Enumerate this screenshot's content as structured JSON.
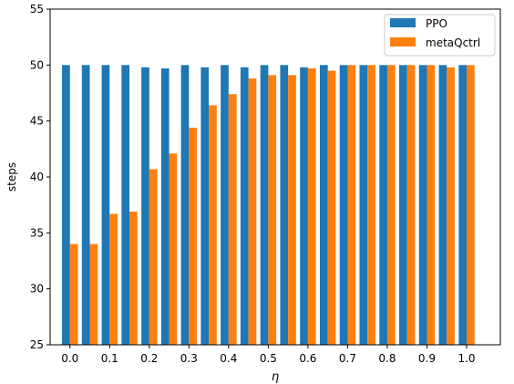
{
  "chart_data": {
    "type": "bar",
    "title": "",
    "xlabel": "η",
    "ylabel": "steps",
    "ylim": [
      25,
      55
    ],
    "yticks": [
      25,
      30,
      35,
      40,
      45,
      50,
      55
    ],
    "x": [
      0.0,
      0.05,
      0.1,
      0.15,
      0.2,
      0.25,
      0.3,
      0.35,
      0.4,
      0.45,
      0.5,
      0.55,
      0.6,
      0.65,
      0.7,
      0.75,
      0.8,
      0.85,
      0.9,
      0.95,
      1.0
    ],
    "xticks": [
      "0.0",
      "0.1",
      "0.2",
      "0.3",
      "0.4",
      "0.5",
      "0.6",
      "0.7",
      "0.8",
      "0.9",
      "1.0"
    ],
    "grid": false,
    "legend": "top-right",
    "series": [
      {
        "name": "PPO",
        "color": "#1f77b4",
        "values": [
          50.0,
          50.0,
          50.0,
          50.0,
          49.8,
          49.7,
          50.0,
          49.8,
          50.0,
          49.8,
          50.0,
          50.0,
          49.8,
          50.0,
          50.0,
          50.0,
          50.0,
          50.0,
          50.0,
          50.0,
          50.0
        ]
      },
      {
        "name": "metaQctrl",
        "color": "#ff7f0e",
        "values": [
          34.0,
          34.0,
          36.7,
          36.9,
          40.7,
          42.1,
          44.4,
          46.4,
          47.4,
          48.8,
          49.1,
          49.1,
          49.7,
          49.5,
          50.0,
          50.0,
          50.0,
          50.0,
          50.0,
          49.8,
          50.0
        ]
      }
    ]
  }
}
